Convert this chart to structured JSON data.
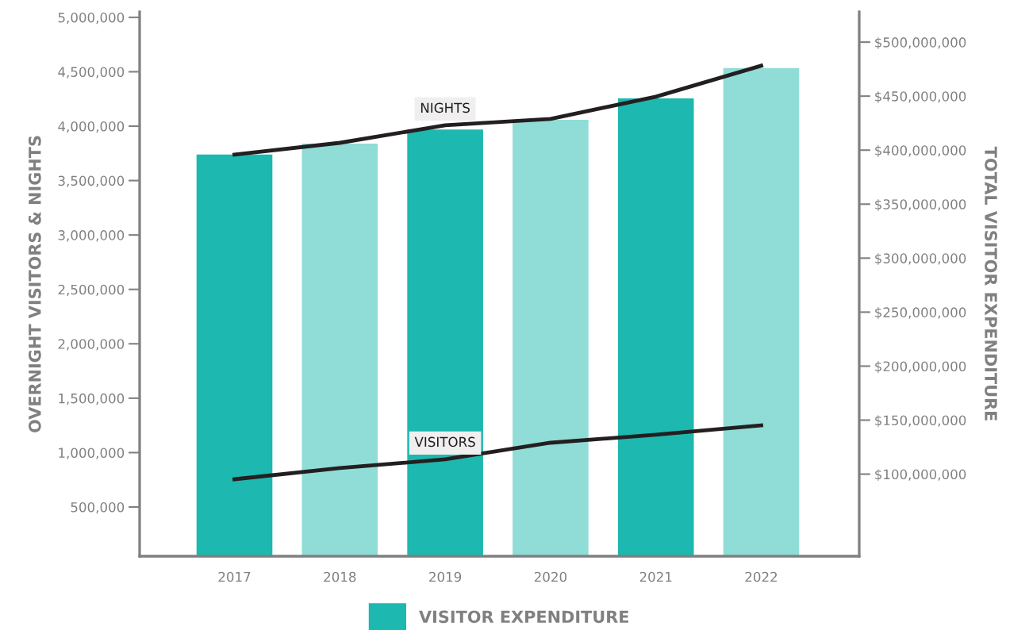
{
  "chart_data": {
    "type": "bar",
    "categories": [
      "2017",
      "2018",
      "2019",
      "2020",
      "2021",
      "2022"
    ],
    "ylabel": "OVERNIGHT VISITORS & NIGHTS",
    "y2label": "TOTAL VISITOR EXPENDITURE",
    "ylim": [
      48000,
      5050000
    ],
    "yticks": [
      {
        "value": 500000,
        "label": "500,000"
      },
      {
        "value": 1000000,
        "label": "1,000,000"
      },
      {
        "value": 1500000,
        "label": "1,500,000"
      },
      {
        "value": 2000000,
        "label": "2,000,000"
      },
      {
        "value": 2500000,
        "label": "2,500,000"
      },
      {
        "value": 3000000,
        "label": "3,000,000"
      },
      {
        "value": 3500000,
        "label": "3,500,000"
      },
      {
        "value": 4000000,
        "label": "4,000,000"
      },
      {
        "value": 4500000,
        "label": "4,500,000"
      },
      {
        "value": 5000000,
        "label": "5,000,000"
      }
    ],
    "y2lim": [
      24000000,
      528000000
    ],
    "y2ticks": [
      {
        "value": 100000000,
        "label": "$100,000,000"
      },
      {
        "value": 150000000,
        "label": "$150,000,000"
      },
      {
        "value": 200000000,
        "label": "$200,000,000"
      },
      {
        "value": 250000000,
        "label": "$250,000,000"
      },
      {
        "value": 300000000,
        "label": "$300,000,000"
      },
      {
        "value": 350000000,
        "label": "$350,000,000"
      },
      {
        "value": 400000000,
        "label": "$400,000,000"
      },
      {
        "value": 450000000,
        "label": "$450,000,000"
      },
      {
        "value": 500000000,
        "label": "$500,000,000"
      }
    ],
    "series": [
      {
        "name": "VISITOR EXPENDITURE",
        "axis": "y2",
        "color": "#1db8b0",
        "colors": [
          "#1db8b0",
          "#8fddd6",
          "#1db8b0",
          "#8fddd6",
          "#1db8b0",
          "#8fddd6"
        ],
        "values": [
          396000000,
          406000000,
          419000000,
          428000000,
          448000000,
          476000000
        ]
      },
      {
        "name": "NIGHTS",
        "type": "line",
        "axis": "y",
        "color": "#231f20",
        "values": [
          3738000,
          3847000,
          4008000,
          4067000,
          4271000,
          4555000
        ]
      },
      {
        "name": "VISITORS",
        "type": "line",
        "axis": "y",
        "color": "#231f20",
        "values": [
          755000,
          858000,
          938000,
          1091000,
          1164000,
          1251000
        ]
      }
    ],
    "legend": "bottom",
    "grid": false,
    "marker": "none",
    "line_style": "solid"
  }
}
